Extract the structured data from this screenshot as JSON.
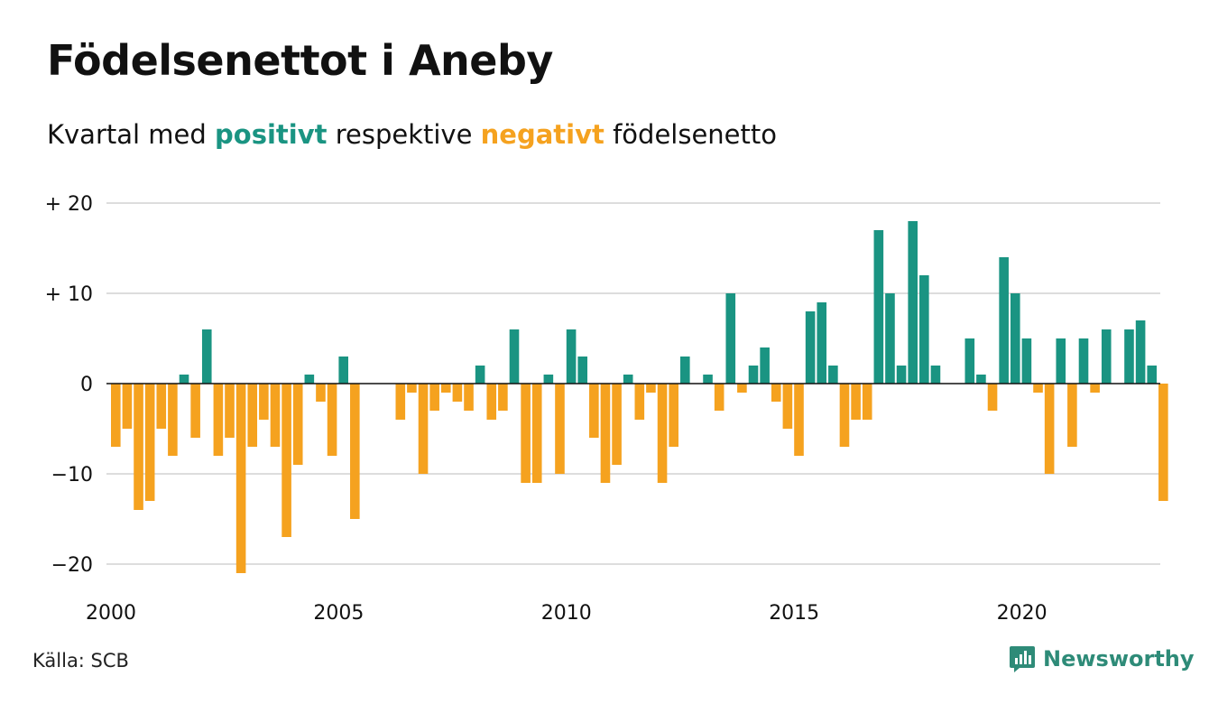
{
  "title": "Födelsenettot i Aneby",
  "subtitle": {
    "prefix": "Kvartal med ",
    "positive_word": "positivt",
    "middle": " respektive ",
    "negative_word": "negativt",
    "suffix": " födelsenetto"
  },
  "source": "Källa: SCB",
  "brand": "Newsworthy",
  "logo_icon": "newsworthy-logo-icon",
  "colors": {
    "positive": "#1a9482",
    "negative": "#f5a21f",
    "grid": "#dddddd",
    "zero_line": "#111111",
    "logo": "#2e8b78"
  },
  "chart_data": {
    "type": "bar",
    "title": "Födelsenettot i Aneby",
    "subtitle": "Kvartal med positivt respektive negativt födelsenetto",
    "xlabel": "",
    "ylabel": "",
    "start_year": 2000,
    "x_ticks": [
      "2000",
      "2005",
      "2010",
      "2015",
      "2020"
    ],
    "y_ticks": [
      {
        "value": 20,
        "label": "+ 20"
      },
      {
        "value": 10,
        "label": "+ 10"
      },
      {
        "value": 0,
        "label": "0"
      },
      {
        "value": -10,
        "label": "−10"
      },
      {
        "value": -20,
        "label": "−20"
      }
    ],
    "ylim": [
      -21,
      20
    ],
    "grid": true,
    "quarters": [
      "2000Q1",
      "2000Q2",
      "2000Q3",
      "2000Q4",
      "2001Q1",
      "2001Q2",
      "2001Q3",
      "2001Q4",
      "2002Q1",
      "2002Q2",
      "2002Q3",
      "2002Q4",
      "2003Q1",
      "2003Q2",
      "2003Q3",
      "2003Q4",
      "2004Q1",
      "2004Q2",
      "2004Q3",
      "2004Q4",
      "2005Q1",
      "2005Q2",
      "2005Q3",
      "2005Q4",
      "2006Q1",
      "2006Q2",
      "2006Q3",
      "2006Q4",
      "2007Q1",
      "2007Q2",
      "2007Q3",
      "2007Q4",
      "2008Q1",
      "2008Q2",
      "2008Q3",
      "2008Q4",
      "2009Q1",
      "2009Q2",
      "2009Q3",
      "2009Q4",
      "2010Q1",
      "2010Q2",
      "2010Q3",
      "2010Q4",
      "2011Q1",
      "2011Q2",
      "2011Q3",
      "2011Q4",
      "2012Q1",
      "2012Q2",
      "2012Q3",
      "2012Q4",
      "2013Q1",
      "2013Q2",
      "2013Q3",
      "2013Q4",
      "2014Q1",
      "2014Q2",
      "2014Q3",
      "2014Q4",
      "2015Q1",
      "2015Q2",
      "2015Q3",
      "2015Q4",
      "2016Q1",
      "2016Q2",
      "2016Q3",
      "2016Q4",
      "2017Q1",
      "2017Q2",
      "2017Q3",
      "2017Q4",
      "2018Q1",
      "2018Q2",
      "2018Q3",
      "2018Q4",
      "2019Q1",
      "2019Q2",
      "2019Q3",
      "2019Q4",
      "2020Q1",
      "2020Q2",
      "2020Q3",
      "2020Q4",
      "2021Q1",
      "2021Q2",
      "2021Q3",
      "2021Q4",
      "2022Q1",
      "2022Q2",
      "2022Q3",
      "2022Q4",
      "2023Q1"
    ],
    "values": [
      -7,
      -5,
      -14,
      -13,
      -5,
      -8,
      1,
      -6,
      6,
      -8,
      -6,
      -21,
      -7,
      -4,
      -7,
      -17,
      -9,
      1,
      -2,
      -8,
      3,
      -15,
      0,
      0,
      0,
      -4,
      -1,
      -10,
      -3,
      -1,
      -2,
      -3,
      2,
      -4,
      -3,
      6,
      -11,
      -11,
      1,
      -10,
      6,
      3,
      -6,
      -11,
      -9,
      1,
      -4,
      -1,
      -11,
      -7,
      3,
      0,
      1,
      -3,
      10,
      -1,
      2,
      4,
      -2,
      -5,
      -8,
      8,
      9,
      2,
      -7,
      -4,
      -4,
      17,
      10,
      2,
      18,
      12,
      2,
      0,
      0,
      5,
      1,
      -3,
      14,
      10,
      5,
      -1,
      -10,
      5,
      -7,
      5,
      -1,
      6,
      0,
      6,
      7,
      2,
      -13
    ]
  }
}
